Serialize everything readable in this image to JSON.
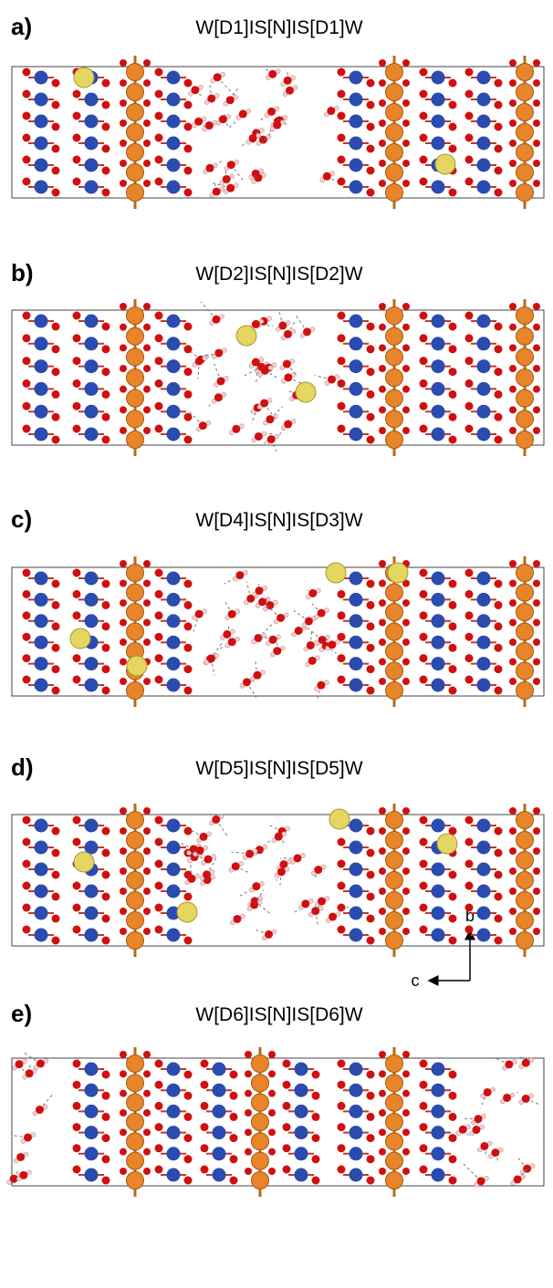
{
  "panels": [
    {
      "label": "a)",
      "title": "W[D1]IS[N]IS[D1]W"
    },
    {
      "label": "b)",
      "title": "W[D2]IS[N]IS[D2]W"
    },
    {
      "label": "c)",
      "title": "W[D4]IS[N]IS[D3]W"
    },
    {
      "label": "d)",
      "title": "W[D5]IS[N]IS[D5]W"
    },
    {
      "label": "e)",
      "title": "W[D6]IS[N]IS[D6]W"
    }
  ],
  "axes": {
    "vertical": "b",
    "horizontal": "c"
  }
}
